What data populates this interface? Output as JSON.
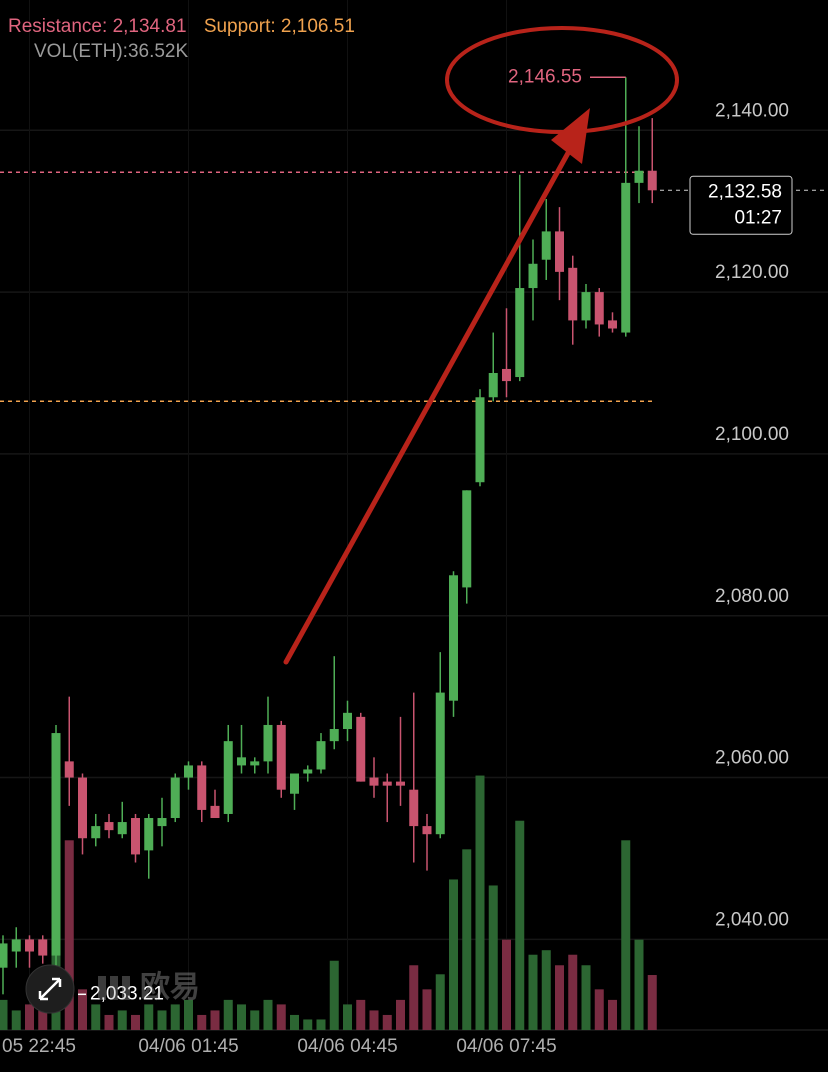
{
  "chart_data": {
    "type": "candlestick",
    "categories": [
      null,
      null,
      "05 22:45",
      null,
      null,
      null,
      null,
      null,
      null,
      null,
      null,
      null,
      null,
      null,
      "04/06 01:45",
      null,
      null,
      null,
      null,
      null,
      null,
      null,
      null,
      null,
      null,
      null,
      "04/06 04:45",
      null,
      null,
      null,
      null,
      null,
      null,
      null,
      null,
      null,
      null,
      null,
      "04/06 07:45",
      null,
      null,
      null,
      null,
      null,
      null,
      null,
      null,
      null,
      null,
      null
    ],
    "open": [
      2036.5,
      2038.5,
      2040,
      2040,
      2038,
      2062,
      2060,
      2052.5,
      2054.5,
      2053,
      2055,
      2051,
      2054,
      2055,
      2060,
      2061.5,
      2056.5,
      2055.5,
      2061.5,
      2061.5,
      2062,
      2066.5,
      2058,
      2060.5,
      2061,
      2064.5,
      2066,
      2067.5,
      2060,
      2059.5,
      2059.5,
      2058.5,
      2054,
      2053,
      2069.5,
      2083.5,
      2096.5,
      2107,
      2110.5,
      2109.5,
      2120.5,
      2124,
      2127.5,
      2123,
      2116.5,
      2120,
      2116.5,
      2115,
      2133.5,
      2135
    ],
    "high": [
      2040.5,
      2041.5,
      2040.5,
      2040.5,
      2066.5,
      2070,
      2060.5,
      2055.5,
      2055.5,
      2057,
      2055.5,
      2055.5,
      2057.5,
      2060.5,
      2062,
      2062,
      2058.5,
      2066.5,
      2066.5,
      2062.5,
      2070,
      2067,
      2060.5,
      2061.5,
      2065.5,
      2075,
      2069.5,
      2068,
      2062.5,
      2060.5,
      2067.5,
      2070.5,
      2055.5,
      2075.5,
      2085.5,
      2095.5,
      2108,
      2115,
      2118,
      2134.5,
      2126.5,
      2131.5,
      2130.5,
      2124.5,
      2121,
      2120.5,
      2117.5,
      2146.55,
      2140.5,
      2141.5
    ],
    "low": [
      2033.21,
      2036.5,
      2036.5,
      2037,
      2036.5,
      2056.5,
      2050.5,
      2051.5,
      2052.5,
      2052.5,
      2049.5,
      2047.5,
      2051.5,
      2054.5,
      2058.5,
      2054.5,
      2055,
      2054.5,
      2060.5,
      2060.5,
      2060.5,
      2057.5,
      2056,
      2059.5,
      2060.5,
      2063.5,
      2064.5,
      2059.5,
      2057.5,
      2054.5,
      2056.5,
      2049.5,
      2048.5,
      2052.5,
      2067.5,
      2081.5,
      2096,
      2106.5,
      2107,
      2109,
      2116.5,
      2121.5,
      2119,
      2113.5,
      2115.5,
      2114.5,
      2115,
      2114.5,
      2131,
      2131
    ],
    "close": [
      2039.5,
      2040,
      2038.5,
      2038,
      2065.5,
      2060,
      2052.5,
      2054,
      2053.5,
      2054.5,
      2050.5,
      2055,
      2055,
      2060,
      2061.5,
      2056,
      2055,
      2064.5,
      2062.5,
      2062,
      2066.5,
      2058.5,
      2060.5,
      2061,
      2064.5,
      2066,
      2068,
      2059.5,
      2059,
      2059,
      2059,
      2054,
      2053,
      2070.5,
      2085,
      2095.5,
      2107,
      2110,
      2109,
      2120.5,
      2123.5,
      2127.5,
      2122.5,
      2116.5,
      2120,
      2116,
      2115.5,
      2133.5,
      2135,
      2132.58
    ],
    "volume": [
      20,
      13,
      17,
      20,
      60,
      126,
      27,
      17,
      10,
      13,
      10,
      17,
      13,
      17,
      20,
      10,
      13,
      20,
      17,
      13,
      20,
      17,
      10,
      7,
      7,
      46,
      17,
      20,
      13,
      10,
      20,
      43,
      27,
      37,
      100,
      120,
      169,
      96,
      60,
      139,
      50,
      53,
      43,
      50,
      43,
      27,
      20,
      126,
      60,
      36.52
    ],
    "up_color": "#4fae56",
    "down_color": "#c9546f",
    "volume_up_color": "#2c6632",
    "volume_down_color": "#7a2c42",
    "ylim": [
      2028.8,
      2156.1
    ],
    "yticks": [
      {
        "value": 2140,
        "label": "2,140.00"
      },
      {
        "value": 2120,
        "label": "2,120.00"
      },
      {
        "value": 2100,
        "label": "2,100.00"
      },
      {
        "value": 2080,
        "label": "2,080.00"
      },
      {
        "value": 2060,
        "label": "2,060.00"
      },
      {
        "value": 2040,
        "label": "2,040.00"
      }
    ],
    "y2lim": [
      0,
      180
    ],
    "grid": true,
    "resistance": {
      "name": "Resistance:",
      "value": 2134.81,
      "label": "2,134.81",
      "color": "#e0657f"
    },
    "support": {
      "name": "Support:",
      "value": 2106.51,
      "label": "2,106.51",
      "color": "#f0a24e"
    },
    "volume_info": {
      "name": "VOL(ETH):",
      "value": 36.52,
      "label": "36.52K"
    },
    "high_marker": {
      "value": 2146.55,
      "label": "2,146.55"
    },
    "low_marker": {
      "value": 2033.21,
      "label": "2,033.21"
    },
    "last_price": {
      "value": 2132.58,
      "label": "2,132.58",
      "countdown": "01:27"
    },
    "watermark": "欧易"
  }
}
